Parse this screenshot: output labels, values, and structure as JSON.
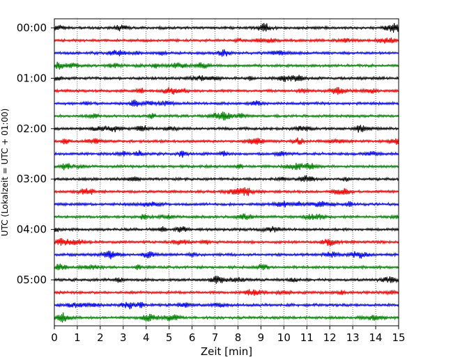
{
  "chart_data": {
    "type": "line",
    "title": "",
    "xlabel": "Zeit  [min]",
    "ylabel": "UTC (Lokalzeit = UTC + 01:00)",
    "xlim": [
      0,
      15
    ],
    "xticks": [
      0,
      1,
      2,
      3,
      4,
      5,
      6,
      7,
      8,
      9,
      10,
      11,
      12,
      13,
      14,
      15
    ],
    "xtick_labels": [
      "0",
      "1",
      "2",
      "3",
      "4",
      "5",
      "6",
      "7",
      "8",
      "9",
      "10",
      "11",
      "12",
      "13",
      "14",
      "15"
    ],
    "yticks": [
      "00:00",
      "01:00",
      "02:00",
      "03:00",
      "04:00",
      "05:00"
    ],
    "trace_start_times": [
      "00:00",
      "00:15",
      "00:30",
      "00:45",
      "01:00",
      "01:15",
      "01:30",
      "01:45",
      "02:00",
      "02:15",
      "02:30",
      "02:45",
      "03:00",
      "03:15",
      "03:30",
      "03:45",
      "04:00",
      "04:15",
      "04:30",
      "04:45",
      "05:00",
      "05:15",
      "05:30",
      "05:45"
    ],
    "trace_colors": [
      "#000000",
      "#ff0000",
      "#0000ff",
      "#008000"
    ],
    "trace_duration_min": 15,
    "vertical_grid": "dotted"
  }
}
